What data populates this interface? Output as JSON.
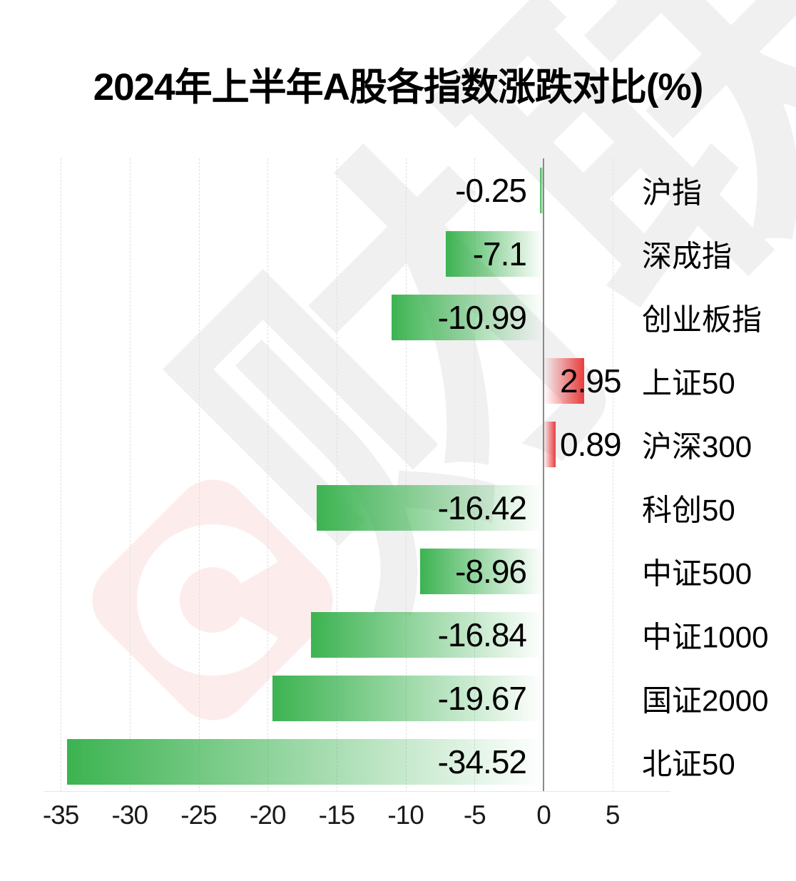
{
  "title": "2024年上半年A股各指数涨跌对比(%)",
  "watermark": {
    "text": "财联社",
    "logo_letter": "C",
    "text_color": "#f0f0f0",
    "logo_background_color": "#fcedec"
  },
  "colors": {
    "negative_bar": "#3cb351",
    "positive_bar": "#e93c3e",
    "zero_axis_line": "#8a8a8a",
    "grid_line": "#e0e0e0",
    "text": "#000000"
  },
  "chart_data": {
    "type": "bar",
    "orientation": "horizontal",
    "title": "2024年上半年A股各指数涨跌对比(%)",
    "xlabel": "",
    "ylabel": "",
    "categories": [
      "沪指",
      "深成指",
      "创业板指",
      "上证50",
      "沪深300",
      "科创50",
      "中证500",
      "中证1000",
      "国证2000",
      "北证50"
    ],
    "values": [
      -0.25,
      -7.1,
      -10.99,
      2.95,
      0.89,
      -16.42,
      -8.96,
      -16.84,
      -19.67,
      -34.52
    ],
    "value_labels": [
      "-0.25",
      "-7.1",
      "-10.99",
      "2.95",
      "0.89",
      "-16.42",
      "-8.96",
      "-16.84",
      "-19.67",
      "-34.52"
    ],
    "x_ticks": [
      -35,
      -30,
      -25,
      -20,
      -15,
      -10,
      -5,
      0,
      5
    ],
    "x_tick_labels": [
      "-35",
      "-30",
      "-25",
      "-20",
      "-15",
      "-10",
      "-5",
      "0",
      "5"
    ],
    "xlim": [
      -37,
      7
    ],
    "grid": "vertical-dashed",
    "legend": "none",
    "bar_gradient": "saturated at value end, fades to transparent at zero"
  }
}
